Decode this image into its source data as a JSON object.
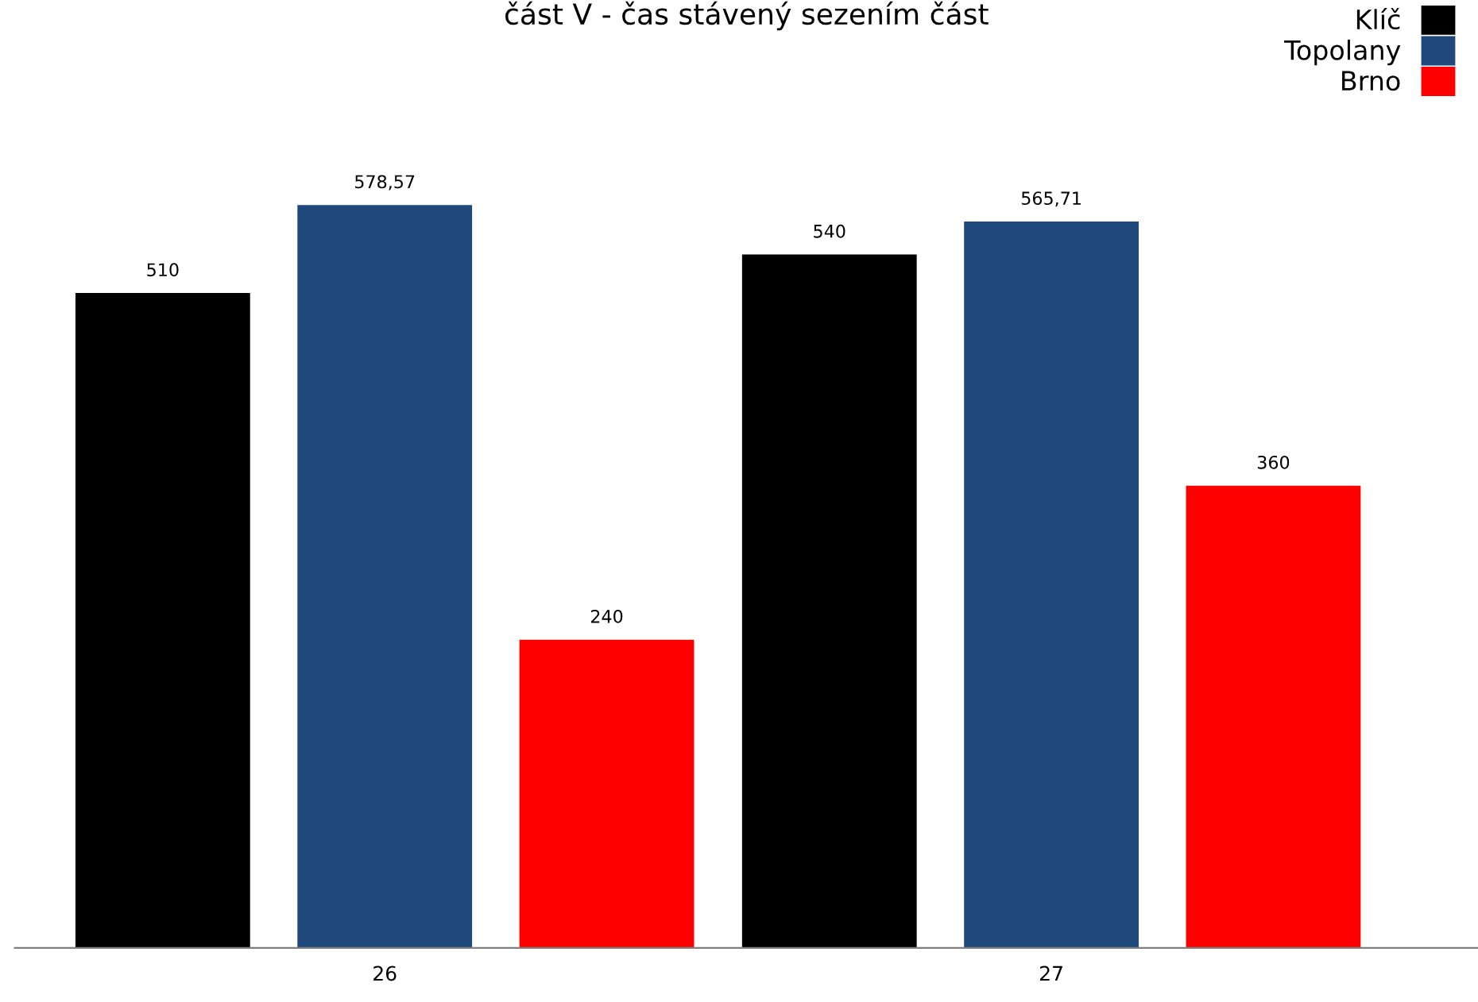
{
  "chart_data": {
    "type": "bar",
    "title": "část V - čas stávený sezením část",
    "categories": [
      "26",
      "27"
    ],
    "series": [
      {
        "name": "Klíč",
        "color": "#000000",
        "values": [
          510,
          540
        ],
        "value_labels": [
          "510",
          "540"
        ]
      },
      {
        "name": "Topolany",
        "color": "#1f497d",
        "values": [
          578.57,
          565.71
        ],
        "value_labels": [
          "578,57",
          "565,71"
        ]
      },
      {
        "name": "Brno",
        "color": "#ff0000",
        "values": [
          240,
          360
        ],
        "value_labels": [
          "240",
          "360"
        ]
      }
    ],
    "legend": "top right",
    "grid": false,
    "tick_labels": "x"
  }
}
